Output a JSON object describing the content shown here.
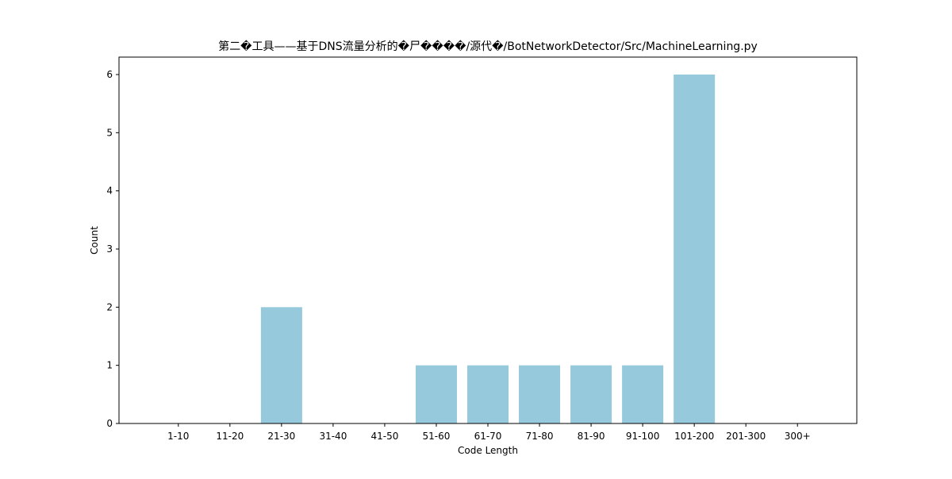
{
  "chart_data": {
    "type": "bar",
    "title": "第二�工具——基于DNS流量分析的�尸����/源代�/BotNetworkDetector/Src/MachineLearning.py",
    "xlabel": "Code Length",
    "ylabel": "Count",
    "categories": [
      "1-10",
      "11-20",
      "21-30",
      "31-40",
      "41-50",
      "51-60",
      "61-70",
      "71-80",
      "81-90",
      "91-100",
      "101-200",
      "201-300",
      "300+"
    ],
    "values": [
      0,
      0,
      2,
      0,
      0,
      1,
      1,
      1,
      1,
      1,
      6,
      0,
      0
    ],
    "ylim": [
      0,
      6.3
    ],
    "yticks": [
      0,
      1,
      2,
      3,
      4,
      5,
      6
    ],
    "grid": false,
    "legend": "none",
    "bar_color": "#96c9dc"
  }
}
